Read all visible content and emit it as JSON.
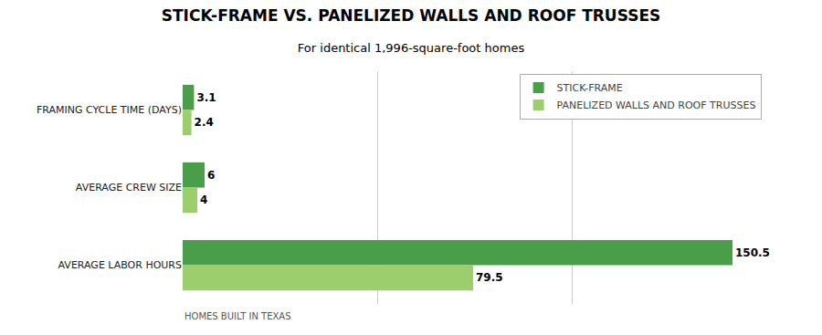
{
  "chart_data": {
    "type": "bar",
    "orientation": "horizontal",
    "title": "STICK-FRAME VS. PANELIZED WALLS AND ROOF TRUSSES",
    "subtitle": "For identical 1,996-square-foot homes",
    "annotations": [
      "HOMES BUILT IN TEXAS"
    ],
    "categories": [
      "FRAMING CYCLE TIME (DAYS)",
      "AVERAGE CREW SIZE",
      "AVERAGE LABOR HOURS"
    ],
    "series": [
      {
        "name": "STICK-FRAME",
        "color": "#4a9e4a",
        "values": [
          3.1,
          6,
          150.5
        ]
      },
      {
        "name": "PANELIZED WALLS AND ROOF TRUSSES",
        "color": "#9dce6e",
        "values": [
          2.4,
          4,
          79.5
        ]
      }
    ],
    "xlim": [
      0,
      160
    ],
    "xticks": [
      0,
      53.333333333333336,
      106.66666666666667,
      160
    ],
    "grid": true,
    "tick_labels": "y",
    "data_labels": true,
    "legend": "upper right"
  }
}
